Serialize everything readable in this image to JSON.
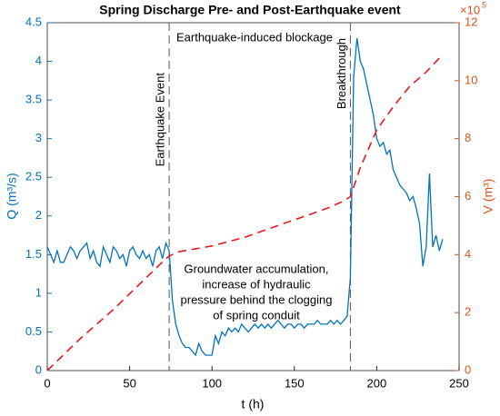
{
  "chart_data": {
    "type": "line",
    "title": "Spring Discharge Pre- and Post-Earthquake event",
    "x_label": "t (h)",
    "y_label": "Q (m³/s)",
    "y2_label": "V (m³)",
    "y2_multiplier": {
      "base": "×10",
      "exponent": "5"
    },
    "xlim": [
      0,
      250
    ],
    "xticks": [
      0,
      50,
      100,
      150,
      200,
      250
    ],
    "ylim": [
      0,
      4.5
    ],
    "yticks": [
      0,
      0.5,
      1,
      1.5,
      2,
      2.5,
      3,
      3.5,
      4,
      4.5
    ],
    "y2lim": [
      0,
      12
    ],
    "y2ticks": [
      0,
      2,
      4,
      6,
      8,
      10,
      12
    ],
    "y_color": "#0072bd",
    "y2_color": "#d95319",
    "events": [
      {
        "x": 74,
        "label": "Earthquake Event"
      },
      {
        "x": 184,
        "label": "Breakthrough"
      }
    ],
    "annotations": [
      "Earthquake-induced blockage"
    ],
    "note_lines": [
      "Groundwater accumulation,",
      "increase of hydraulic",
      "pressure behind the clogging",
      "of spring conduit"
    ],
    "series": [
      {
        "color": "#0072bd",
        "style": "solid",
        "x": [
          0,
          2,
          4,
          6,
          8,
          10,
          12,
          14,
          16,
          18,
          20,
          22,
          24,
          26,
          28,
          30,
          32,
          34,
          36,
          38,
          40,
          42,
          44,
          46,
          48,
          50,
          52,
          54,
          56,
          58,
          60,
          62,
          64,
          66,
          68,
          70,
          72,
          74,
          76,
          78,
          80,
          82,
          84,
          86,
          88,
          90,
          92,
          94,
          96,
          98,
          100,
          102,
          104,
          106,
          108,
          110,
          112,
          114,
          116,
          118,
          120,
          122,
          124,
          126,
          128,
          130,
          132,
          134,
          136,
          138,
          140,
          142,
          144,
          146,
          148,
          150,
          152,
          154,
          156,
          158,
          160,
          162,
          164,
          166,
          168,
          170,
          172,
          174,
          176,
          178,
          180,
          182,
          184,
          186,
          188,
          190,
          192,
          194,
          196,
          198,
          200,
          202,
          204,
          206,
          208,
          210,
          212,
          214,
          216,
          218,
          220,
          222,
          224,
          226,
          228,
          230,
          232,
          234,
          236,
          238,
          240
        ],
        "values": [
          1.6,
          1.5,
          1.4,
          1.55,
          1.4,
          1.4,
          1.5,
          1.6,
          1.55,
          1.45,
          1.55,
          1.6,
          1.65,
          1.45,
          1.55,
          1.4,
          1.35,
          1.6,
          1.5,
          1.4,
          1.6,
          1.55,
          1.45,
          1.5,
          1.35,
          1.55,
          1.6,
          1.5,
          1.45,
          1.55,
          1.45,
          1.5,
          1.35,
          1.55,
          1.6,
          1.45,
          1.65,
          1.55,
          0.9,
          0.6,
          0.45,
          0.35,
          0.3,
          0.3,
          0.25,
          0.2,
          0.35,
          0.25,
          0.2,
          0.2,
          0.2,
          0.45,
          0.35,
          0.5,
          0.45,
          0.55,
          0.5,
          0.55,
          0.5,
          0.6,
          0.55,
          0.5,
          0.55,
          0.6,
          0.55,
          0.6,
          0.55,
          0.6,
          0.55,
          0.6,
          0.65,
          0.6,
          0.55,
          0.6,
          0.6,
          0.55,
          0.6,
          0.6,
          0.55,
          0.6,
          0.6,
          0.6,
          0.65,
          0.6,
          0.6,
          0.6,
          0.65,
          0.6,
          0.65,
          0.6,
          0.65,
          0.7,
          1.2,
          3.8,
          4.3,
          4.0,
          3.9,
          3.7,
          3.5,
          3.3,
          3.0,
          2.9,
          2.95,
          2.8,
          2.85,
          2.6,
          2.5,
          2.4,
          2.35,
          2.3,
          2.2,
          2.25,
          2.1,
          1.9,
          1.35,
          1.6,
          2.55,
          1.6,
          1.75,
          1.55,
          1.7
        ]
      },
      {
        "color": "#e41a1c",
        "style": "dashed",
        "axis": "y2",
        "x": [
          0,
          10,
          20,
          30,
          40,
          50,
          60,
          70,
          74,
          80,
          90,
          100,
          110,
          120,
          130,
          140,
          150,
          160,
          170,
          180,
          184,
          190,
          200,
          210,
          220,
          230,
          240
        ],
        "values": [
          0,
          0.55,
          1.1,
          1.6,
          2.1,
          2.65,
          3.2,
          3.75,
          3.95,
          4.1,
          4.2,
          4.3,
          4.45,
          4.6,
          4.8,
          5.0,
          5.2,
          5.4,
          5.6,
          5.85,
          6.0,
          7.0,
          8.3,
          9.1,
          9.8,
          10.3,
          10.9
        ]
      }
    ]
  }
}
